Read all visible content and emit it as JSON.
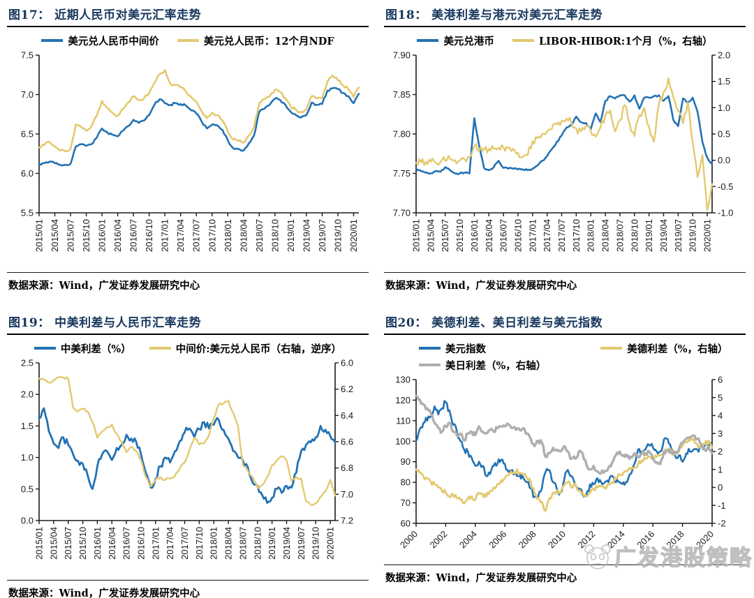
{
  "colors": {
    "blue": "#2272B4",
    "yellow": "#E3C96F",
    "gray": "#AFAFAF",
    "title_navy": "#17375E",
    "axis": "#1a1a1a",
    "watermark_gray": "#b4b4b4"
  },
  "watermark": {
    "text": "广发港股策略",
    "icon": "panda-face-icon"
  },
  "chart_data": [
    {
      "type": "line",
      "title": "图17： 近期人民币对美元汇率走势",
      "source": "数据来源：Wind，广发证券发展研究中心",
      "legend_position": "top",
      "grid": false,
      "x_label_rotate": 90,
      "x_tick_every": 3,
      "x_tick_labels": [
        "2015/01",
        "2015/04",
        "2015/07",
        "2015/10",
        "2016/01",
        "2016/04",
        "2016/07",
        "2016/10",
        "2017/01",
        "2017/04",
        "2017/07",
        "2017/10",
        "2018/01",
        "2018/04",
        "2018/07",
        "2018/10",
        "2019/01",
        "2019/04",
        "2019/07",
        "2019/10",
        "2020/01"
      ],
      "left_axis": {
        "min": 5.5,
        "max": 7.5,
        "ticks": [
          5.5,
          6.0,
          6.5,
          7.0,
          7.5
        ],
        "labels": [
          "5.5",
          "6.0",
          "6.5",
          "7.0",
          "7.5"
        ]
      },
      "right_axis": null,
      "series": [
        {
          "name": "美元兑人民币中间价",
          "color": "blue",
          "axis": "left",
          "values": [
            6.12,
            6.13,
            6.15,
            6.13,
            6.11,
            6.11,
            6.12,
            6.34,
            6.37,
            6.35,
            6.37,
            6.45,
            6.57,
            6.52,
            6.49,
            6.47,
            6.54,
            6.6,
            6.68,
            6.64,
            6.67,
            6.74,
            6.87,
            6.94,
            6.89,
            6.87,
            6.89,
            6.88,
            6.86,
            6.8,
            6.76,
            6.66,
            6.57,
            6.62,
            6.61,
            6.55,
            6.42,
            6.32,
            6.31,
            6.29,
            6.38,
            6.48,
            6.78,
            6.82,
            6.87,
            6.95,
            6.93,
            6.87,
            6.78,
            6.74,
            6.71,
            6.74,
            6.9,
            6.87,
            6.88,
            7.05,
            7.08,
            7.07,
            7.02,
            6.98,
            6.89,
            7.01
          ]
        },
        {
          "name": "美元兑人民币：12个月NDF",
          "color": "yellow",
          "axis": "left",
          "values": [
            6.33,
            6.36,
            6.4,
            6.34,
            6.29,
            6.28,
            6.31,
            6.62,
            6.59,
            6.54,
            6.6,
            6.73,
            6.92,
            6.83,
            6.77,
            6.73,
            6.82,
            6.9,
            6.98,
            6.93,
            6.95,
            7.02,
            7.15,
            7.26,
            7.31,
            7.14,
            7.12,
            7.09,
            7.04,
            6.97,
            6.91,
            6.79,
            6.7,
            6.77,
            6.74,
            6.67,
            6.53,
            6.43,
            6.41,
            6.39,
            6.48,
            6.59,
            6.89,
            6.94,
            6.98,
            7.06,
            7.03,
            6.95,
            6.85,
            6.81,
            6.78,
            6.81,
            6.98,
            6.95,
            6.96,
            7.16,
            7.24,
            7.18,
            7.12,
            7.07,
            6.97,
            7.09
          ]
        }
      ]
    },
    {
      "type": "line",
      "title": "图18： 美港利差与港元对美元汇率走势",
      "source": "数据来源：Wind，广发证券发展研究中心",
      "legend_position": "top",
      "grid": false,
      "x_label_rotate": 90,
      "x_tick_every": 3,
      "x_tick_labels": [
        "2015/01",
        "2015/04",
        "2015/07",
        "2015/10",
        "2016/01",
        "2016/04",
        "2016/07",
        "2016/10",
        "2017/01",
        "2017/04",
        "2017/07",
        "2017/10",
        "2018/01",
        "2018/04",
        "2018/07",
        "2018/10",
        "2019/01",
        "2019/04",
        "2019/07",
        "2019/10",
        "2020/01"
      ],
      "left_axis": {
        "min": 7.7,
        "max": 7.9,
        "ticks": [
          7.7,
          7.75,
          7.8,
          7.85,
          7.9
        ],
        "labels": [
          "7.70",
          "7.75",
          "7.80",
          "7.85",
          "7.90"
        ]
      },
      "right_axis": {
        "min": -1.0,
        "max": 2.0,
        "inverted": false,
        "ticks": [
          -1.0,
          -0.5,
          0.0,
          0.5,
          1.0,
          1.5,
          2.0
        ],
        "labels": [
          "-1.0",
          "-0.5",
          "0.0",
          "0.5",
          "1.0",
          "1.5",
          "2.0"
        ]
      },
      "series": [
        {
          "name": "美元兑港币",
          "color": "blue",
          "axis": "left",
          "values": [
            7.756,
            7.753,
            7.751,
            7.75,
            7.753,
            7.752,
            7.758,
            7.754,
            7.75,
            7.75,
            7.751,
            7.75,
            7.82,
            7.785,
            7.757,
            7.754,
            7.758,
            7.766,
            7.757,
            7.756,
            7.756,
            7.755,
            7.755,
            7.754,
            7.756,
            7.76,
            7.766,
            7.772,
            7.781,
            7.79,
            7.798,
            7.808,
            7.812,
            7.822,
            7.815,
            7.814,
            7.806,
            7.826,
            7.815,
            7.842,
            7.848,
            7.845,
            7.849,
            7.849,
            7.841,
            7.849,
            7.832,
            7.846,
            7.846,
            7.848,
            7.849,
            7.842,
            7.848,
            7.818,
            7.81,
            7.845,
            7.84,
            7.846,
            7.828,
            7.79,
            7.77,
            7.762
          ]
        },
        {
          "name": "LIBOR-HIBOR:1个月（%，右轴）",
          "color": "yellow",
          "axis": "right",
          "values": [
            -0.05,
            -0.04,
            -0.03,
            -0.03,
            -0.04,
            -0.03,
            -0.01,
            0.02,
            0.0,
            0.0,
            0.02,
            0.06,
            0.26,
            0.18,
            0.21,
            0.22,
            0.22,
            0.24,
            0.25,
            0.24,
            0.22,
            0.14,
            0.06,
            0.1,
            0.36,
            0.42,
            0.5,
            0.55,
            0.6,
            0.68,
            0.75,
            0.79,
            0.72,
            0.6,
            0.55,
            0.66,
            0.55,
            0.45,
            0.62,
            0.86,
            0.95,
            0.55,
            0.76,
            1.05,
            0.7,
            0.46,
            0.86,
            1.0,
            0.64,
            0.35,
            1.05,
            1.3,
            1.56,
            1.2,
            0.95,
            0.7,
            1.1,
            0.34,
            -0.32,
            0.1,
            -0.95,
            -0.45
          ]
        }
      ]
    },
    {
      "type": "line",
      "title": "图19： 中美利差与人民币汇率走势",
      "source": "数据来源：Wind，广发证券发展研究中心",
      "legend_position": "top",
      "grid": false,
      "x_label_rotate": 90,
      "x_tick_every": 3,
      "x_tick_labels": [
        "2015/01",
        "2015/04",
        "2015/07",
        "2015/10",
        "2016/01",
        "2016/04",
        "2016/07",
        "2016/10",
        "2017/01",
        "2017/04",
        "2017/07",
        "2017/10",
        "2018/01",
        "2018/04",
        "2018/07",
        "2018/10",
        "2019/01",
        "2019/04",
        "2019/07",
        "2019/10",
        "2020/01"
      ],
      "left_axis": {
        "min": 0.0,
        "max": 2.5,
        "ticks": [
          0.0,
          0.5,
          1.0,
          1.5,
          2.0,
          2.5
        ],
        "labels": [
          "0.0",
          "0.5",
          "1.0",
          "1.5",
          "2.0",
          "2.5"
        ]
      },
      "right_axis": {
        "min": 6.0,
        "max": 7.2,
        "inverted": true,
        "ticks": [
          6.0,
          6.2,
          6.4,
          6.6,
          6.8,
          7.0,
          7.2
        ],
        "labels": [
          "6.0",
          "6.2",
          "6.4",
          "6.6",
          "6.8",
          "7.0",
          "7.2"
        ]
      },
      "series": [
        {
          "name": "中美利差（%）",
          "color": "blue",
          "axis": "left",
          "values": [
            1.62,
            1.78,
            1.42,
            1.22,
            1.15,
            1.32,
            1.2,
            1.05,
            0.95,
            0.9,
            0.72,
            0.5,
            0.86,
            1.05,
            1.1,
            0.96,
            1.15,
            1.2,
            1.36,
            1.3,
            1.25,
            1.05,
            0.76,
            0.52,
            0.66,
            0.86,
            1.0,
            0.92,
            1.1,
            1.26,
            1.4,
            1.46,
            1.32,
            1.45,
            1.56,
            1.46,
            1.52,
            1.6,
            1.44,
            1.3,
            1.1,
            1.0,
            0.95,
            0.85,
            0.6,
            0.55,
            0.4,
            0.28,
            0.36,
            0.5,
            0.44,
            0.55,
            0.52,
            0.76,
            1.1,
            1.2,
            1.24,
            1.32,
            1.5,
            1.44,
            1.34,
            1.24
          ]
        },
        {
          "name": "中间价:美元兑人民币（右轴，逆序）",
          "color": "yellow",
          "axis": "right",
          "values": [
            6.12,
            6.13,
            6.15,
            6.13,
            6.11,
            6.11,
            6.12,
            6.34,
            6.37,
            6.35,
            6.37,
            6.45,
            6.57,
            6.52,
            6.49,
            6.47,
            6.54,
            6.6,
            6.68,
            6.64,
            6.67,
            6.74,
            6.87,
            6.94,
            6.89,
            6.87,
            6.89,
            6.88,
            6.86,
            6.8,
            6.76,
            6.66,
            6.57,
            6.62,
            6.61,
            6.55,
            6.42,
            6.32,
            6.31,
            6.29,
            6.38,
            6.48,
            6.78,
            6.82,
            6.87,
            6.95,
            6.93,
            6.87,
            6.78,
            6.74,
            6.71,
            6.74,
            6.9,
            6.87,
            6.88,
            7.05,
            7.08,
            7.07,
            7.02,
            6.98,
            6.89,
            7.01
          ]
        }
      ]
    },
    {
      "type": "line",
      "title": "图20： 美德利差、美日利差与美元指数",
      "source": "数据来源：Wind，广发证券发展研究中心",
      "legend_position": "top",
      "legend_columns": 2,
      "grid": false,
      "x_label_rotate": 45,
      "x_tick_every": 8,
      "x_tick_labels": [
        "2000",
        "2002",
        "2004",
        "2006",
        "2008",
        "2010",
        "2012",
        "2014",
        "2016",
        "2018",
        "2020"
      ],
      "left_axis": {
        "min": 60,
        "max": 130,
        "ticks": [
          60,
          70,
          80,
          90,
          100,
          110,
          120,
          130
        ],
        "labels": [
          "60",
          "70",
          "80",
          "90",
          "100",
          "110",
          "120",
          "130"
        ]
      },
      "right_axis": {
        "min": -2,
        "max": 6,
        "inverted": false,
        "ticks": [
          -2,
          -1,
          0,
          1,
          2,
          3,
          4,
          5,
          6
        ],
        "labels": [
          "-2",
          "-1",
          "0",
          "1",
          "2",
          "3",
          "4",
          "5",
          "6"
        ]
      },
      "series": [
        {
          "name": "美元指数",
          "color": "blue",
          "axis": "left",
          "values": [
            100,
            106,
            109,
            110,
            112,
            117,
            113,
            116,
            119,
            115,
            108,
            105,
            100,
            96,
            95,
            92,
            88,
            90,
            88,
            83,
            84,
            88,
            89,
            91,
            89,
            85,
            86,
            84,
            84,
            82,
            80,
            77,
            73,
            73,
            77,
            85,
            86,
            80,
            77,
            75,
            81,
            86,
            83,
            79,
            77,
            74,
            74,
            79,
            79,
            82,
            80,
            80,
            80,
            83,
            80,
            80,
            80,
            80,
            84,
            89,
            96,
            95,
            96,
            98,
            97,
            95,
            95,
            101,
            101,
            96,
            93,
            93,
            90,
            94,
            95,
            96,
            96,
            97,
            98,
            97,
            98
          ]
        },
        {
          "name": "美德利差（%，右轴）",
          "color": "yellow",
          "axis": "right",
          "values": [
            1.0,
            0.8,
            0.6,
            0.5,
            0.3,
            0.2,
            0.0,
            -0.2,
            -0.3,
            -0.5,
            -0.4,
            -0.6,
            -0.7,
            -0.9,
            -0.6,
            -0.5,
            -0.7,
            -0.3,
            -0.4,
            -0.5,
            -0.2,
            0.0,
            0.2,
            0.4,
            0.5,
            0.7,
            0.8,
            0.9,
            0.8,
            0.7,
            0.5,
            0.3,
            -0.3,
            -0.6,
            -0.8,
            -1.3,
            -0.6,
            -0.3,
            -0.2,
            -0.3,
            0.1,
            0.3,
            0.0,
            0.2,
            -0.2,
            -0.3,
            -0.5,
            -0.3,
            -0.1,
            0.0,
            0.1,
            0.0,
            0.2,
            0.3,
            0.5,
            0.7,
            0.8,
            0.9,
            1.0,
            1.1,
            1.3,
            1.5,
            1.6,
            1.7,
            1.6,
            1.7,
            1.8,
            2.0,
            2.1,
            2.0,
            1.9,
            2.0,
            2.3,
            2.5,
            2.6,
            2.7,
            2.4,
            2.2,
            2.4,
            2.6,
            2.2
          ]
        },
        {
          "name": "美日利差（%，右轴）",
          "color": "gray",
          "axis": "right",
          "values": [
            5.1,
            4.9,
            4.6,
            4.4,
            4.1,
            3.6,
            3.3,
            3.1,
            3.4,
            3.6,
            3.1,
            2.9,
            3.0,
            2.6,
            3.0,
            3.1,
            2.9,
            3.4,
            3.1,
            3.0,
            3.2,
            3.1,
            3.3,
            3.4,
            3.4,
            3.5,
            3.3,
            3.2,
            3.2,
            3.3,
            3.0,
            2.7,
            2.3,
            2.6,
            2.5,
            1.7,
            1.9,
            2.2,
            2.1,
            2.0,
            2.3,
            2.0,
            1.6,
            1.6,
            2.0,
            1.9,
            1.3,
            1.0,
            1.2,
            0.9,
            0.8,
            0.9,
            1.1,
            1.4,
            1.8,
            2.0,
            1.8,
            1.7,
            1.7,
            1.9,
            1.7,
            1.9,
            1.9,
            2.0,
            1.6,
            1.4,
            1.3,
            2.0,
            2.1,
            2.0,
            1.9,
            2.1,
            2.5,
            2.7,
            2.8,
            2.9,
            2.7,
            2.4,
            2.1,
            2.3,
            1.9
          ]
        }
      ]
    }
  ]
}
